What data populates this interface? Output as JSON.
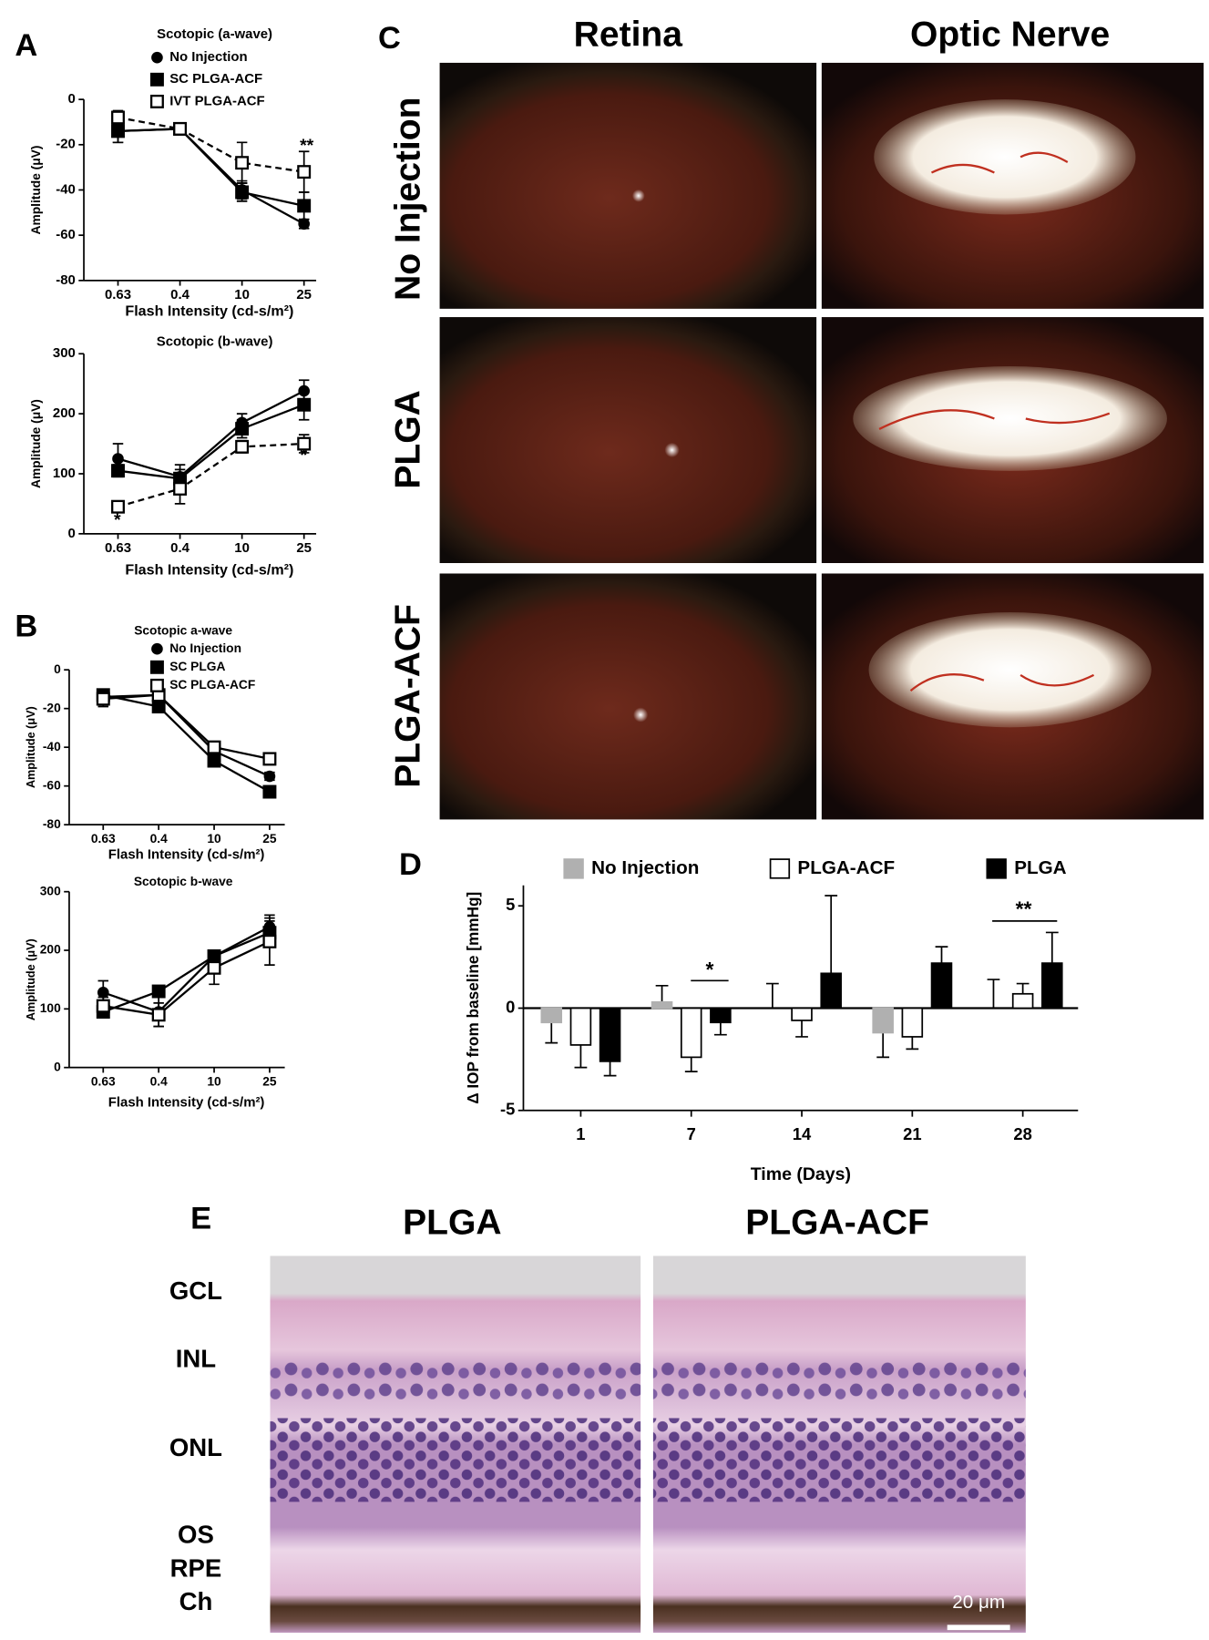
{
  "panels": {
    "a": "A",
    "b": "B",
    "c": "C",
    "d": "D",
    "e": "E"
  },
  "panel_c": {
    "columns": [
      "Retina",
      "Optic Nerve"
    ],
    "rows": [
      "No Injection",
      "PLGA",
      "PLGA-ACF"
    ]
  },
  "panel_e": {
    "columns": [
      "PLGA",
      "PLGA-ACF"
    ],
    "layers": [
      "GCL",
      "INL",
      "ONL",
      "OS",
      "RPE",
      "Ch"
    ],
    "scale_bar": "20 μm"
  },
  "chart_data": [
    {
      "type": "line",
      "title": "Scotopic (a-wave)",
      "x_label": "Flash Intensity (cd-s/m²)",
      "y_label": "Amplitude (μV)",
      "categories": [
        "0.63",
        "0.4",
        "10",
        "25"
      ],
      "ylim": [
        -80,
        0
      ],
      "yticks": [
        0,
        -20,
        -40,
        -60,
        -80
      ],
      "series": [
        {
          "name": "No Injection",
          "color": "#000000",
          "marker": "circle",
          "dash": false,
          "values": [
            -14,
            -13,
            -40,
            -55
          ],
          "errors": [
            5,
            1,
            4,
            2
          ]
        },
        {
          "name": "SC PLGA-ACF",
          "color": "#000000",
          "marker": "square",
          "dash": false,
          "values": [
            -14,
            -13,
            -41,
            -47
          ],
          "errors": [
            5,
            1,
            4,
            6
          ]
        },
        {
          "name": "IVT PLGA-ACF",
          "color": "#000000",
          "marker": "open-square",
          "dash": true,
          "values": [
            -8,
            -13,
            -28,
            -32
          ],
          "errors": [
            3,
            1,
            9,
            9
          ]
        }
      ],
      "annotations": [
        "**"
      ]
    },
    {
      "type": "line",
      "title": "Scotopic (b-wave)",
      "x_label": "Flash Intensity (cd-s/m²)",
      "y_label": "Amplitude (μV)",
      "categories": [
        "0.63",
        "0.4",
        "10",
        "25"
      ],
      "ylim": [
        0,
        300
      ],
      "yticks": [
        0,
        100,
        200,
        300
      ],
      "series": [
        {
          "color": "#000000",
          "marker": "circle",
          "dash": false,
          "values": [
            125,
            95,
            185,
            238
          ],
          "errors": [
            25,
            20,
            15,
            18
          ]
        },
        {
          "color": "#000000",
          "marker": "square",
          "dash": false,
          "values": [
            105,
            92,
            175,
            215
          ],
          "errors": [
            10,
            15,
            15,
            25
          ]
        },
        {
          "color": "#000000",
          "marker": "open-square",
          "dash": true,
          "values": [
            45,
            75,
            145,
            150
          ],
          "errors": [
            8,
            25,
            10,
            15
          ]
        }
      ],
      "annotations": [
        "*",
        "*"
      ]
    },
    {
      "type": "line",
      "title": "Scotopic a-wave",
      "x_label": "Flash Intensity (cd-s/m²)",
      "y_label": "Amplitude (μV)",
      "categories": [
        "0.63",
        "0.4",
        "10",
        "25"
      ],
      "ylim": [
        -80,
        0
      ],
      "yticks": [
        0,
        -20,
        -40,
        -60,
        -80
      ],
      "series": [
        {
          "name": "No Injection",
          "color": "#000000",
          "marker": "circle",
          "dash": false,
          "values": [
            -14,
            -13,
            -42,
            -55
          ],
          "errors": [
            4,
            1,
            3,
            2
          ]
        },
        {
          "name": "SC PLGA",
          "color": "#000000",
          "marker": "square",
          "dash": false,
          "values": [
            -13,
            -19,
            -47,
            -63
          ],
          "errors": [
            3,
            2,
            3,
            3
          ]
        },
        {
          "name": "SC PLGA-ACF",
          "color": "#000000",
          "marker": "open-square",
          "dash": false,
          "values": [
            -15,
            -13,
            -40,
            -46
          ],
          "errors": [
            4,
            1,
            3,
            3
          ]
        }
      ]
    },
    {
      "type": "line",
      "title": "Scotopic b-wave",
      "x_label": "Flash Intensity (cd-s/m²)",
      "y_label": "Amplitude (μV)",
      "categories": [
        "0.63",
        "0.4",
        "10",
        "25"
      ],
      "ylim": [
        0,
        300
      ],
      "yticks": [
        0,
        100,
        200,
        300
      ],
      "series": [
        {
          "color": "#000000",
          "marker": "circle",
          "dash": false,
          "values": [
            128,
            95,
            190,
            240
          ],
          "errors": [
            20,
            25,
            10,
            20
          ]
        },
        {
          "color": "#000000",
          "marker": "square",
          "dash": false,
          "values": [
            95,
            130,
            190,
            230
          ],
          "errors": [
            10,
            8,
            10,
            20
          ]
        },
        {
          "color": "#000000",
          "marker": "open-square",
          "dash": false,
          "values": [
            105,
            90,
            170,
            215
          ],
          "errors": [
            15,
            20,
            28,
            40
          ]
        }
      ]
    },
    {
      "type": "bar",
      "x_label": "Time (Days)",
      "y_label": "Δ IOP from baseline [mmHg]",
      "categories": [
        "1",
        "7",
        "14",
        "21",
        "28"
      ],
      "ylim": [
        -5,
        6
      ],
      "yticks": [
        -5,
        0,
        5
      ],
      "series": [
        {
          "name": "No Injection",
          "color": "#b0b0b0",
          "values": [
            -0.7,
            0.3,
            0,
            -1.2,
            0
          ],
          "errors": [
            1,
            0.8,
            1.2,
            1.2,
            1.4
          ]
        },
        {
          "name": "PLGA-ACF",
          "color": "#ffffff",
          "values": [
            -1.8,
            -2.4,
            -0.6,
            -1.4,
            0.7
          ],
          "errors": [
            1.1,
            0.7,
            0.8,
            0.6,
            0.5
          ]
        },
        {
          "name": "PLGA",
          "color": "#000000",
          "values": [
            -2.6,
            -0.7,
            1.7,
            2.2,
            2.2
          ],
          "errors": [
            0.7,
            0.6,
            3.8,
            0.8,
            1.5
          ]
        }
      ],
      "annotations": [
        "*",
        "**"
      ]
    }
  ]
}
